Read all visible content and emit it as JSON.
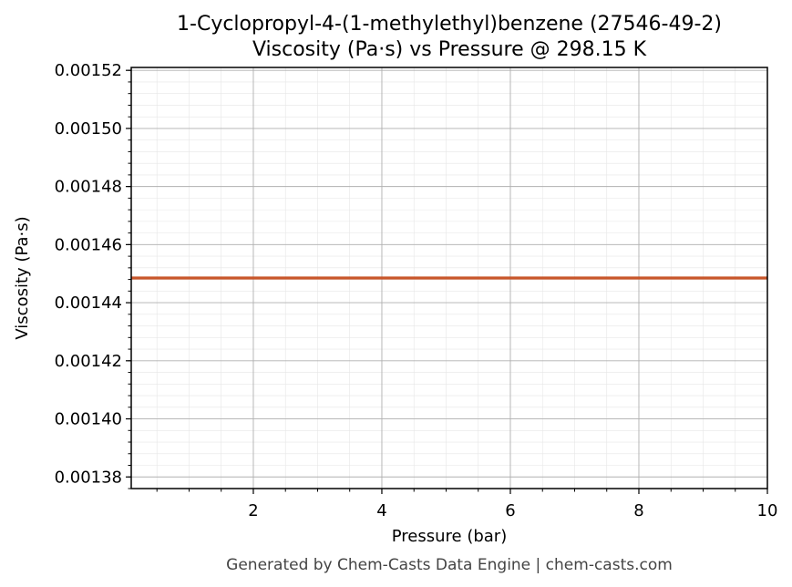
{
  "chart_data": {
    "type": "line",
    "title": "1-Cyclopropyl-4-(1-methylethyl)benzene (27546-49-2)",
    "subtitle": "Viscosity (Pa·s) vs Pressure @ 298.15 K",
    "xlabel": "Pressure (bar)",
    "ylabel": "Viscosity (Pa·s)",
    "xlim": [
      0.1,
      10
    ],
    "ylim": [
      0.001376,
      0.001521
    ],
    "x_ticks": [
      2,
      4,
      6,
      8,
      10
    ],
    "x_tick_labels": [
      "2",
      "4",
      "6",
      "8",
      "10"
    ],
    "y_ticks": [
      0.00138,
      0.0014,
      0.00142,
      0.00144,
      0.00146,
      0.00148,
      0.0015,
      0.00152
    ],
    "y_tick_labels": [
      "0.00138",
      "0.00140",
      "0.00142",
      "0.00144",
      "0.00146",
      "0.00148",
      "0.00150",
      "0.00152"
    ],
    "grid": true,
    "series": [
      {
        "color": "#c8562a",
        "x": [
          0.1,
          1,
          2,
          3,
          4,
          5,
          6,
          7,
          8,
          9,
          10
        ],
        "y": [
          0.0014485,
          0.0014485,
          0.0014485,
          0.0014485,
          0.0014485,
          0.0014485,
          0.0014485,
          0.0014485,
          0.0014485,
          0.0014485,
          0.0014485
        ]
      }
    ]
  },
  "footer": "Generated by Chem-Casts Data Engine | chem-casts.com"
}
